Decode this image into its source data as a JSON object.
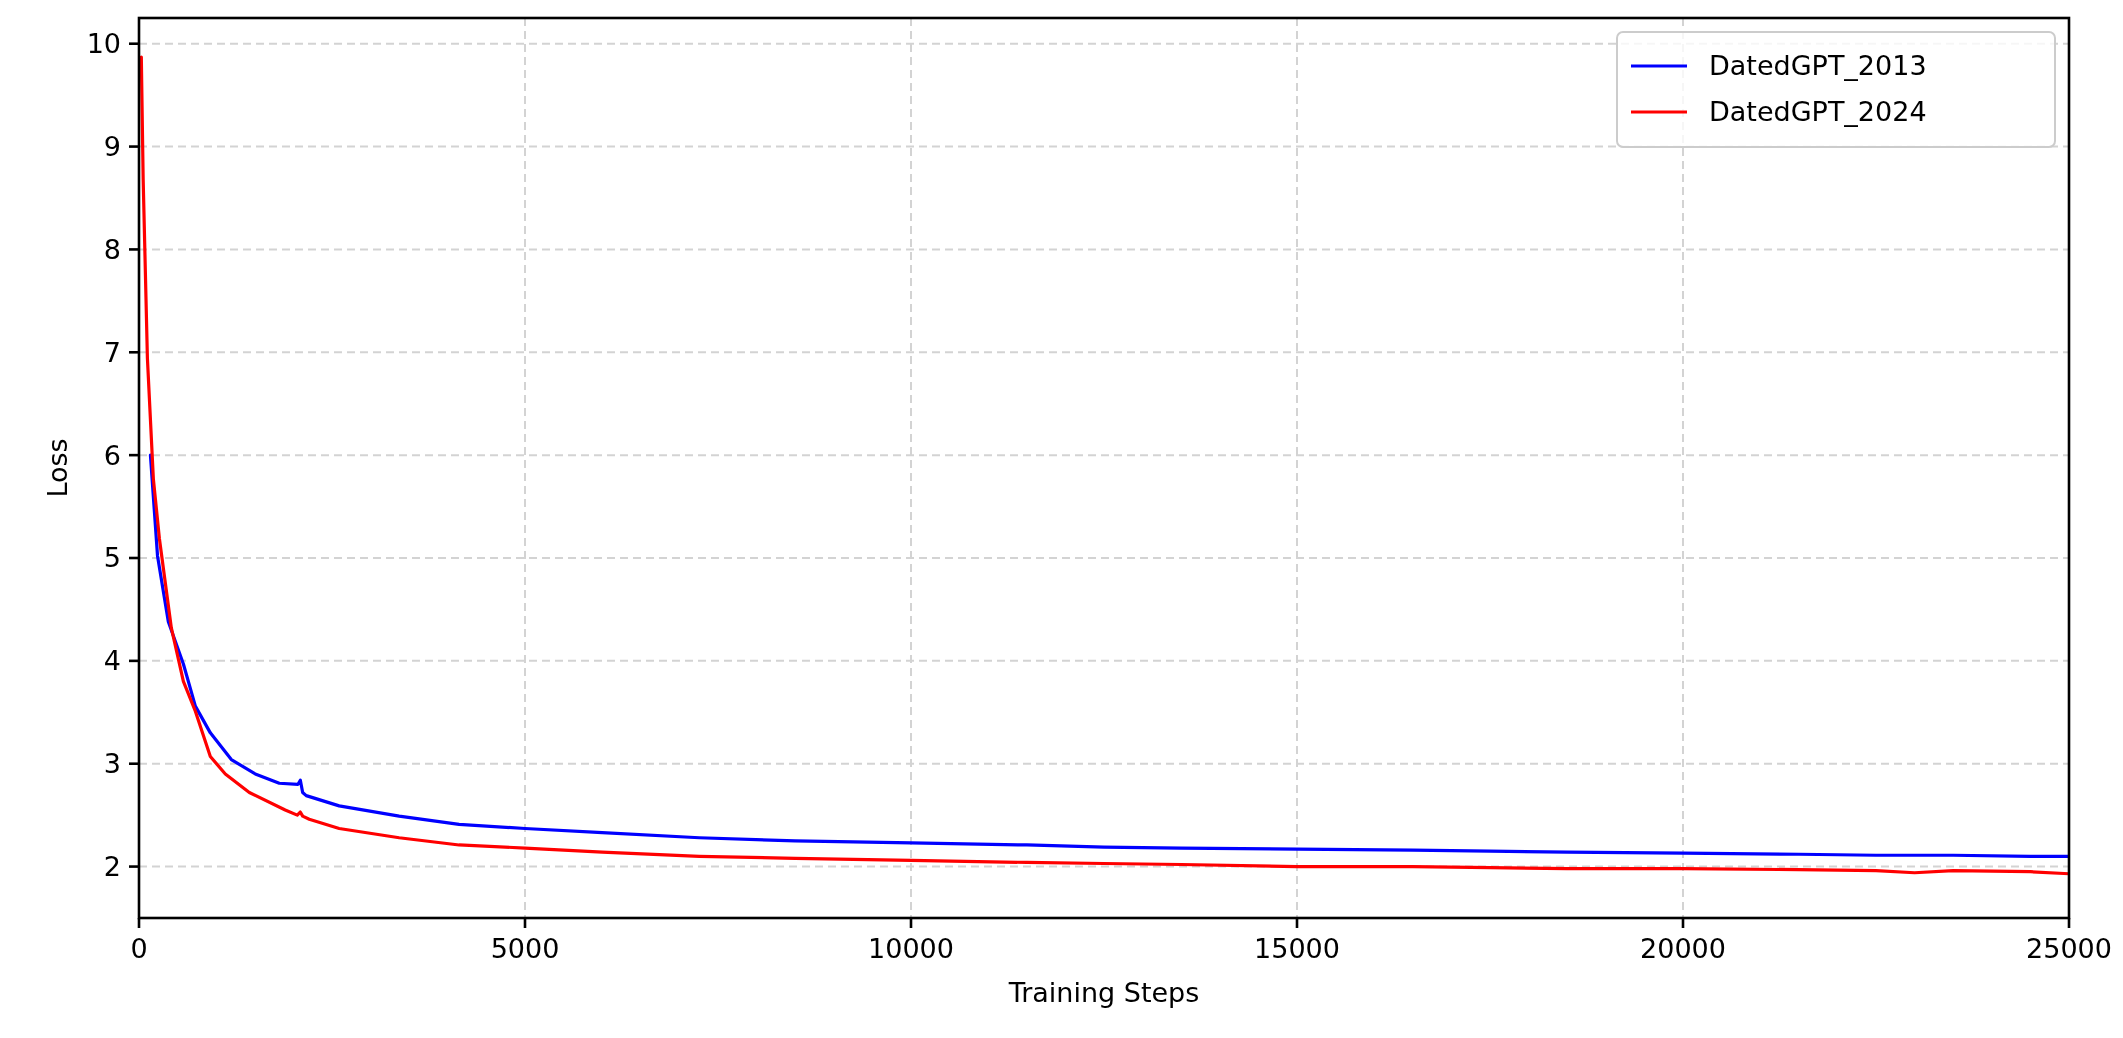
{
  "chart_data": {
    "type": "line",
    "xlabel": "Training Steps",
    "ylabel": "Loss",
    "xlim": [
      0,
      25000
    ],
    "xticks": [
      0,
      5000,
      10000,
      15000,
      20000,
      25000
    ],
    "ylim": [
      1.5,
      10.25
    ],
    "yticks": [
      2,
      3,
      4,
      5,
      6,
      7,
      8,
      9,
      10
    ],
    "grid": true,
    "legend": "top right",
    "line_style": "solid",
    "marker": "none",
    "series": [
      {
        "name": "DatedGPT_2013",
        "color": "#0000ff",
        "x": [
          148,
          240,
          380,
          575,
          730,
          924,
          1196,
          1506,
          1817,
          2060,
          2090,
          2120,
          2166,
          2593,
          3370,
          4146,
          5000,
          6000,
          7258,
          8500,
          10000,
          11500,
          12500,
          13500,
          15000,
          16500,
          17500,
          18500,
          20000,
          21500,
          22500,
          23500,
          24500,
          25000
        ],
        "values": [
          6.0,
          5.02,
          4.38,
          3.97,
          3.56,
          3.3,
          3.04,
          2.9,
          2.81,
          2.8,
          2.84,
          2.72,
          2.69,
          2.59,
          2.49,
          2.41,
          2.37,
          2.33,
          2.28,
          2.25,
          2.23,
          2.21,
          2.19,
          2.18,
          2.17,
          2.16,
          2.15,
          2.14,
          2.13,
          2.12,
          2.11,
          2.11,
          2.1,
          2.1
        ]
      },
      {
        "name": "DatedGPT_2024",
        "color": "#ff0000",
        "x": [
          30,
          54,
          109,
          186,
          264,
          419,
          575,
          730,
          924,
          1118,
          1429,
          1894,
          2050,
          2089,
          2120,
          2205,
          2593,
          3370,
          4146,
          5000,
          6000,
          7258,
          8500,
          10000,
          11500,
          12500,
          13500,
          15000,
          16500,
          17500,
          18500,
          20000,
          21500,
          22500,
          23000,
          23500,
          24500,
          25000
        ],
        "values": [
          9.87,
          8.68,
          6.94,
          5.77,
          5.19,
          4.32,
          3.8,
          3.51,
          3.07,
          2.9,
          2.72,
          2.55,
          2.5,
          2.53,
          2.49,
          2.46,
          2.37,
          2.28,
          2.21,
          2.18,
          2.14,
          2.1,
          2.08,
          2.06,
          2.04,
          2.03,
          2.02,
          2.0,
          2.0,
          1.99,
          1.98,
          1.98,
          1.97,
          1.96,
          1.94,
          1.96,
          1.95,
          1.93
        ]
      }
    ]
  }
}
